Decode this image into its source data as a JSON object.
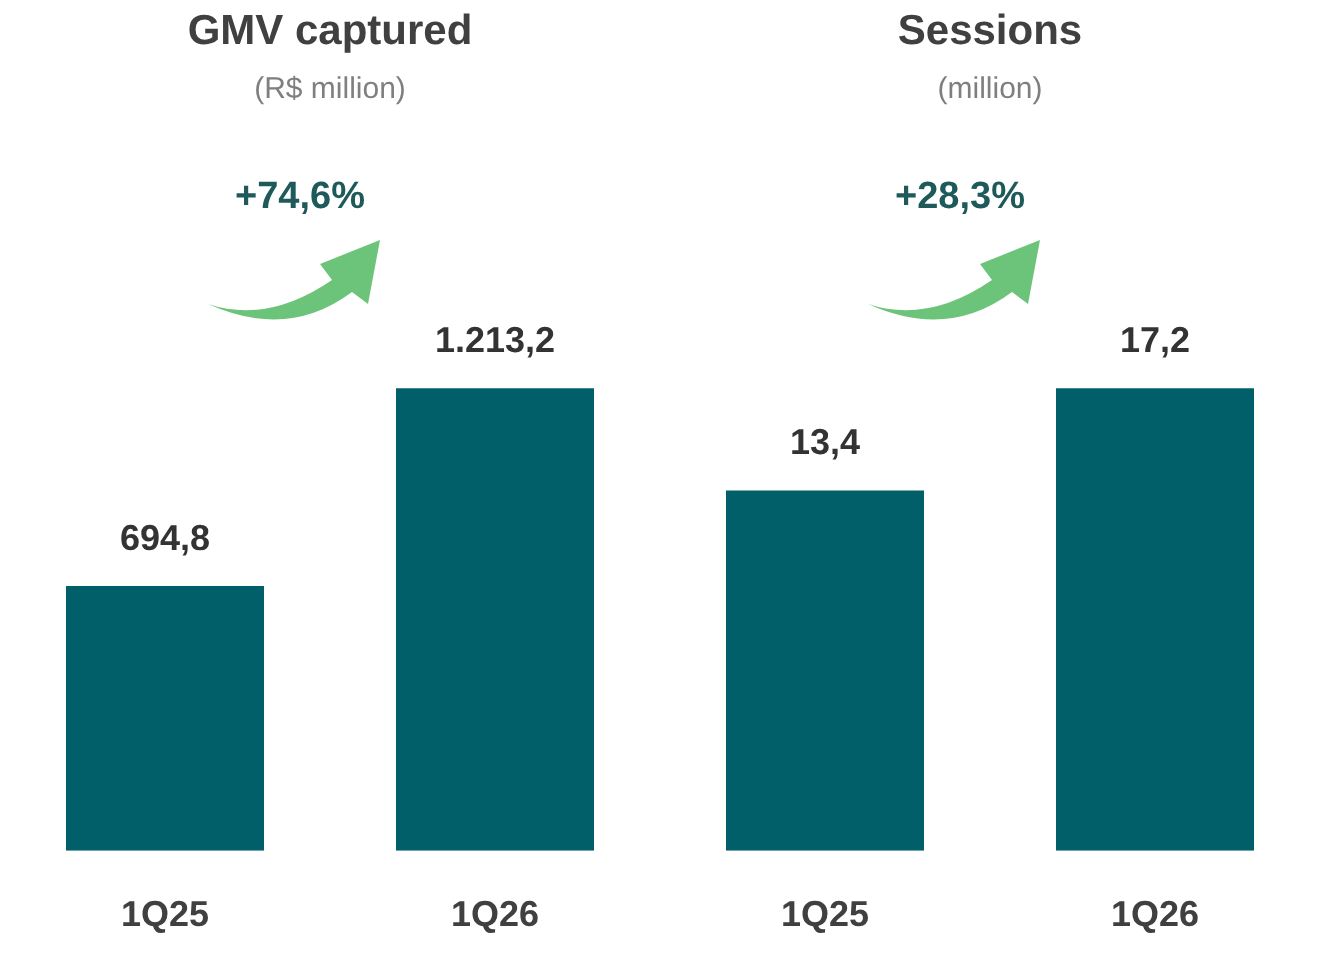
{
  "chart_data": [
    {
      "type": "bar",
      "title": "GMV captured",
      "subtitle": "(R$ million)",
      "categories": [
        "1Q25",
        "1Q26"
      ],
      "values": [
        694.8,
        1213.2
      ],
      "color": "#005f69",
      "value_labels": [
        "694,8",
        "1.213,2"
      ],
      "annotations": [
        "+74,6%"
      ]
    },
    {
      "type": "bar",
      "title": "Sessions",
      "subtitle": "(million)",
      "categories": [
        "1Q25",
        "1Q26"
      ],
      "values": [
        13.4,
        17.2
      ],
      "color": "#005f69",
      "value_labels": [
        "13,4",
        "17,2"
      ],
      "annotations": [
        "+28,3%"
      ]
    }
  ]
}
